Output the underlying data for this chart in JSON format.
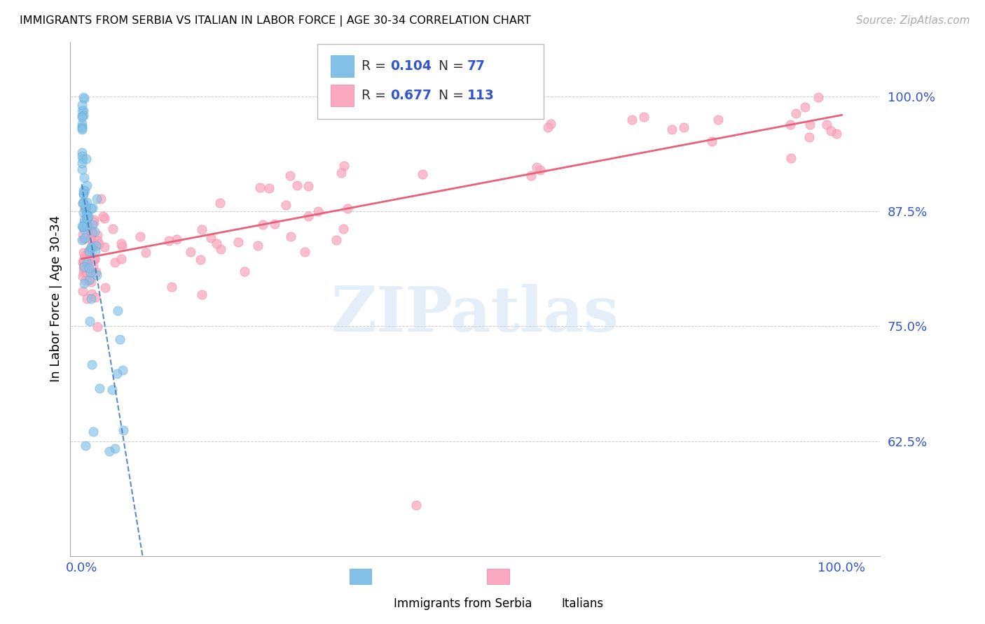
{
  "title": "IMMIGRANTS FROM SERBIA VS ITALIAN IN LABOR FORCE | AGE 30-34 CORRELATION CHART",
  "source": "Source: ZipAtlas.com",
  "ylabel": "In Labor Force | Age 30-34",
  "ytick_vals": [
    0.625,
    0.75,
    0.875,
    1.0
  ],
  "ytick_labels": [
    "62.5%",
    "75.0%",
    "87.5%",
    "100.0%"
  ],
  "legend_serbia_R": "0.104",
  "legend_serbia_N": "77",
  "legend_italian_R": "0.677",
  "legend_italian_N": "113",
  "serbia_color": "#82c0e8",
  "serbia_edge_color": "#5aaad8",
  "italian_color": "#f9a8bf",
  "italian_edge_color": "#f080a0",
  "serbia_line_color": "#3a7abf",
  "italian_line_color": "#e8607a",
  "text_blue": "#3355cc",
  "watermark_color": "#c8dff5",
  "grid_color": "#cccccc",
  "tick_color": "#3355cc",
  "title_fontsize": 11.5,
  "label_fontsize": 13,
  "source_fontsize": 11,
  "xlim": [
    -0.015,
    1.05
  ],
  "ylim": [
    0.5,
    1.06
  ]
}
